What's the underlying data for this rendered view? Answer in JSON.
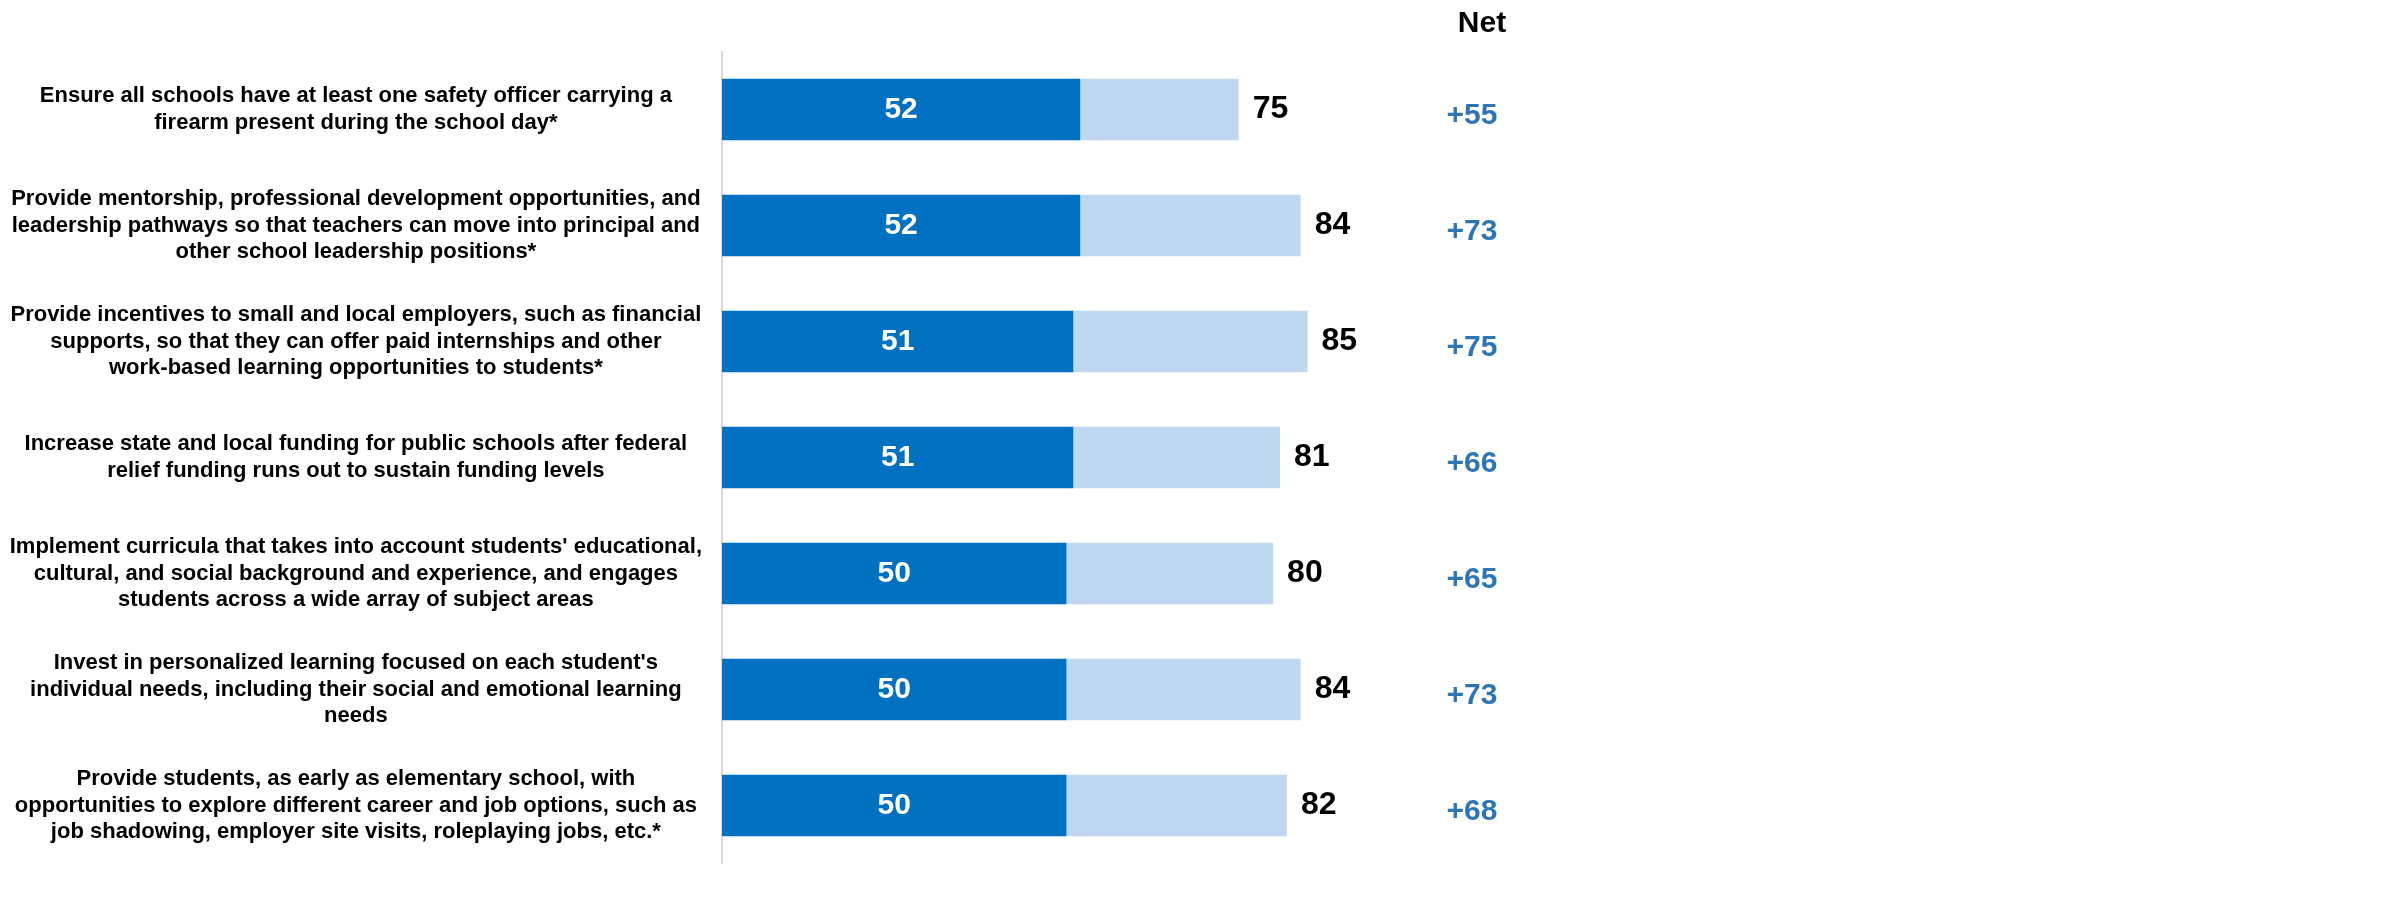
{
  "chart_data": {
    "type": "bar",
    "orientation": "horizontal",
    "stacked": true,
    "tick_labels": "y",
    "categories": [
      "Ensure all schools have at least one safety officer carrying a firearm present during the school day*",
      "Provide mentorship, professional development opportunities, and leadership pathways so that teachers can move into principal and other school leadership positions*",
      "Provide incentives to small and local employers, such as financial supports, so that they can offer paid internships and other work-based learning opportunities to students*",
      "Increase state and local funding for public schools after federal relief funding runs out to sustain funding levels",
      "Implement curricula that takes into account students' educational, cultural, and social background and experience, and engages students across a wide array of subject areas",
      "Invest in personalized learning focused on each student's individual needs, including their social and emotional learning needs",
      "Provide students, as early as elementary school, with opportunities to explore different career and job options, such as job shadowing, employer site visits, roleplaying jobs, etc.*"
    ],
    "series": [
      {
        "color": "#0070c0",
        "values": [
          52,
          52,
          51,
          51,
          50,
          50,
          50
        ],
        "value_labels": [
          "52",
          "52",
          "51",
          "51",
          "50",
          "50",
          "50"
        ]
      },
      {
        "color": "#bdd7ee",
        "values": [
          23,
          32,
          34,
          30,
          30,
          34,
          32
        ]
      }
    ],
    "totals": [
      "75",
      "84",
      "85",
      "81",
      "80",
      "84",
      "82"
    ],
    "annotations": [
      "Net",
      "+55",
      "+73",
      "+75",
      "+66",
      "+65",
      "+73",
      "+68"
    ]
  }
}
